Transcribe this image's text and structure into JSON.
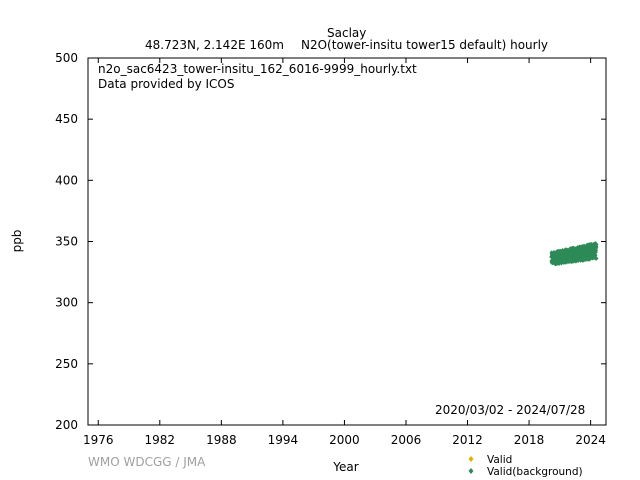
{
  "header": {
    "station": "Saclay",
    "location": "48.723N, 2.142E 160m",
    "species": "N2O(tower-insitu tower15 default) hourly"
  },
  "annotations": {
    "filename": "n2o_sac6423_tower-insitu_162_6016-9999_hourly.txt",
    "provider": "Data provided by ICOS",
    "date_range": "2020/03/02 - 2024/07/28",
    "credit": "WMO WDCGG / JMA"
  },
  "chart_data": {
    "type": "scatter",
    "xlabel": "Year",
    "ylabel": "ppb",
    "xlim": [
      1975,
      2025.5
    ],
    "ylim": [
      200,
      500
    ],
    "x_ticks": [
      1976,
      1982,
      1988,
      1994,
      2000,
      2006,
      2012,
      2018,
      2024
    ],
    "y_ticks": [
      200,
      250,
      300,
      350,
      400,
      450,
      500
    ],
    "legend": {
      "placement": "bottom-right",
      "entries": [
        {
          "name": "Valid",
          "color": "#e0b000",
          "marker": "diamond"
        },
        {
          "name": "Valid(background)",
          "color": "#2e8b57",
          "marker": "diamond"
        }
      ]
    },
    "series": [
      {
        "name": "Valid(background)",
        "color": "#2e8b57",
        "x_start": 2020.17,
        "x_end": 2024.57,
        "y_min_start": 331,
        "y_max_start": 341,
        "y_min_end": 336,
        "y_max_end": 349
      }
    ]
  }
}
